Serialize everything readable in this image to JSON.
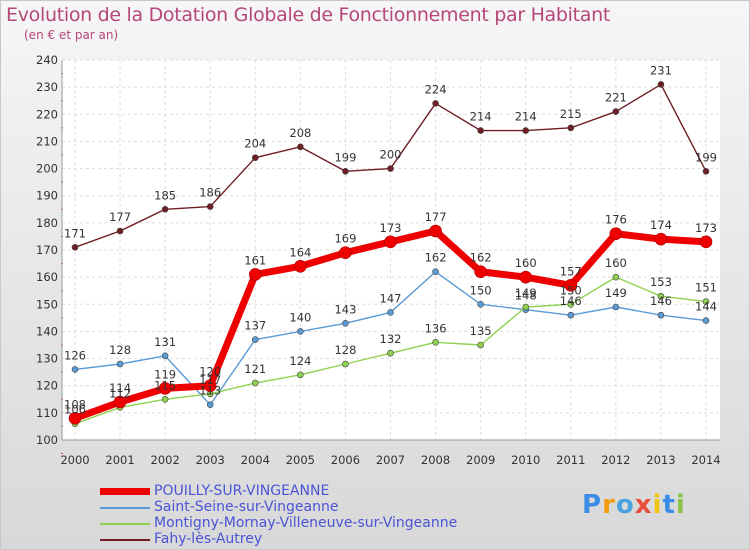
{
  "chart_data": {
    "type": "line",
    "title": "Evolution de la Dotation Globale de Fonctionnement par Habitant",
    "subtitle": "(en € et par an)",
    "xlabel": "",
    "ylabel": "",
    "ylim": [
      100,
      240
    ],
    "yticks": [
      100,
      110,
      120,
      130,
      140,
      150,
      160,
      170,
      180,
      190,
      200,
      210,
      220,
      230,
      240
    ],
    "x": [
      "2000",
      "2001",
      "2002",
      "2003",
      "2004",
      "2005",
      "2006",
      "2007",
      "2008",
      "2009",
      "2010",
      "2011",
      "2012",
      "2013",
      "2014"
    ],
    "grid": true,
    "legend_position": "bottom-left",
    "series": [
      {
        "name": "POUILLY-SUR-VINGEANNE",
        "color": "#ee0000",
        "values": [
          108,
          114,
          119,
          120,
          161,
          164,
          169,
          173,
          177,
          162,
          160,
          157,
          176,
          174,
          173
        ],
        "labels": [
          "108",
          "114",
          "119",
          "120",
          "161",
          "164",
          "169",
          "173",
          "177",
          "162",
          "160",
          "157",
          "176",
          "174",
          "173"
        ]
      },
      {
        "name": "Saint-Seine-sur-Vingeanne",
        "color": "#5b9bd5",
        "values": [
          126,
          128,
          131,
          113,
          137,
          140,
          143,
          147,
          162,
          150,
          148,
          146,
          149,
          146,
          144
        ],
        "labels": [
          "126",
          "128",
          "131",
          "113",
          "137",
          "140",
          "143",
          "147",
          "162",
          "150",
          "148",
          "146",
          "149",
          "146",
          "144"
        ]
      },
      {
        "name": "Montigny-Mornay-Villeneuve-sur-Vingeanne",
        "color": "#8fd14f",
        "values": [
          106,
          112,
          115,
          117,
          121,
          124,
          128,
          132,
          136,
          135,
          149,
          150,
          160,
          153,
          151
        ],
        "labels": [
          "106",
          "112",
          "115",
          "117",
          "121",
          "124",
          "128",
          "132",
          "136",
          "135",
          "149",
          "150",
          "160",
          "153",
          "151"
        ]
      },
      {
        "name": "Fahy-lès-Autrey",
        "color": "#6e1e24",
        "values": [
          171,
          177,
          185,
          186,
          204,
          208,
          199,
          200,
          224,
          214,
          214,
          215,
          221,
          231,
          199
        ],
        "labels": [
          "171",
          "177",
          "185",
          "186",
          "204",
          "208",
          "199",
          "200",
          "224",
          "214",
          "214",
          "215",
          "221",
          "231",
          "199"
        ]
      }
    ]
  },
  "logo": {
    "text": "Proxiti",
    "letters": [
      "P",
      "r",
      "o",
      "x",
      "i",
      "t",
      "i"
    ],
    "colors": [
      "#3b8ee8",
      "#f39c12",
      "#4aa3df",
      "#e74c3c",
      "#f1c40f",
      "#3b8ee8",
      "#8bc34a"
    ]
  }
}
